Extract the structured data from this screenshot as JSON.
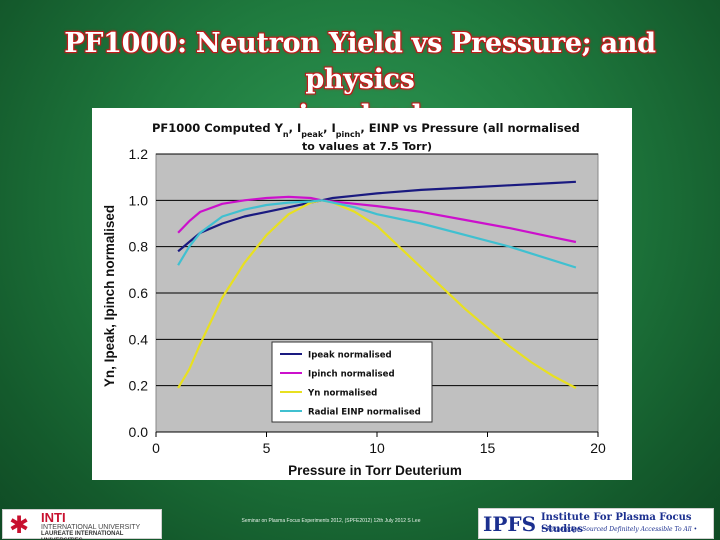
{
  "slide": {
    "title_line1": "PF1000: Neutron Yield vs Pressure; and physics",
    "title_line2": "involved"
  },
  "footer": {
    "center_text": "Seminar on Plasma Focus Experiments 2012, (SPFE2012) 12th July 2012 S Lee",
    "inti_logo": {
      "main": "INTI",
      "sub": "INTERNATIONAL UNIVERSITY",
      "sub2": "LAUREATE INTERNATIONAL UNIVERSITIES"
    },
    "ipfs_logo": {
      "abbr": "IPFS",
      "name": "Institute For Plasma Focus Studies",
      "tagline": "• Knowledge Sourced Definitely Accessible To All •"
    }
  },
  "chart_data": {
    "type": "line",
    "title_part1": "PF1000 Computed Y",
    "title_part1b": "n",
    "title_part2": ", I",
    "title_part2b": "peak",
    "title_part3": ", I",
    "title_part3b": "pinch",
    "title_part4": ", EINP vs Pressure (all normalised",
    "title_line2": "to values at 7.5 Torr)",
    "xlabel": "Pressure in Torr Deuterium",
    "ylabel": "Yn, Ipeak, Ipinch normalised",
    "xlim": [
      0,
      20
    ],
    "ylim": [
      0.0,
      1.2
    ],
    "x_ticks": [
      "0",
      "5",
      "10",
      "15",
      "20"
    ],
    "y_ticks": [
      "0.0",
      "0.2",
      "0.4",
      "0.6",
      "0.8",
      "1.0",
      "1.2"
    ],
    "grid": "horizontal",
    "plot_background": "#c0c0c0",
    "legend_position": "inside-bottom-center",
    "series": [
      {
        "name": "Ipeak normalised",
        "color": "#1a1a80",
        "x": [
          1,
          1.5,
          2,
          3,
          4,
          5,
          6,
          7,
          7.5,
          8,
          9,
          10,
          12,
          14,
          16,
          18,
          19
        ],
        "y": [
          0.78,
          0.82,
          0.86,
          0.9,
          0.93,
          0.95,
          0.97,
          0.99,
          1.0,
          1.01,
          1.02,
          1.03,
          1.045,
          1.055,
          1.065,
          1.075,
          1.08
        ]
      },
      {
        "name": "Ipinch normalised",
        "color": "#cc10cc",
        "x": [
          1,
          1.5,
          2,
          3,
          4,
          5,
          6,
          7,
          7.5,
          8,
          9,
          10,
          12,
          14,
          16,
          18,
          19
        ],
        "y": [
          0.86,
          0.91,
          0.95,
          0.985,
          1.0,
          1.01,
          1.015,
          1.01,
          1.0,
          0.995,
          0.985,
          0.975,
          0.95,
          0.915,
          0.88,
          0.84,
          0.82
        ]
      },
      {
        "name": "Yn normalised",
        "color": "#e8e020",
        "x": [
          1,
          1.5,
          2,
          3,
          4,
          5,
          6,
          7,
          7.5,
          8,
          9,
          10,
          11,
          12,
          13,
          14,
          15,
          16,
          17,
          18,
          19
        ],
        "y": [
          0.19,
          0.27,
          0.38,
          0.58,
          0.73,
          0.85,
          0.94,
          0.99,
          1.0,
          0.99,
          0.95,
          0.89,
          0.8,
          0.71,
          0.62,
          0.53,
          0.45,
          0.37,
          0.3,
          0.24,
          0.19
        ]
      },
      {
        "name": "Radial EINP normalised",
        "color": "#40c0d0",
        "x": [
          1,
          1.5,
          2,
          3,
          4,
          5,
          6,
          7,
          7.5,
          8,
          9,
          10,
          12,
          14,
          16,
          18,
          19
        ],
        "y": [
          0.72,
          0.8,
          0.86,
          0.93,
          0.96,
          0.98,
          0.99,
          0.995,
          1.0,
          0.99,
          0.97,
          0.94,
          0.9,
          0.85,
          0.8,
          0.74,
          0.71
        ]
      }
    ]
  }
}
